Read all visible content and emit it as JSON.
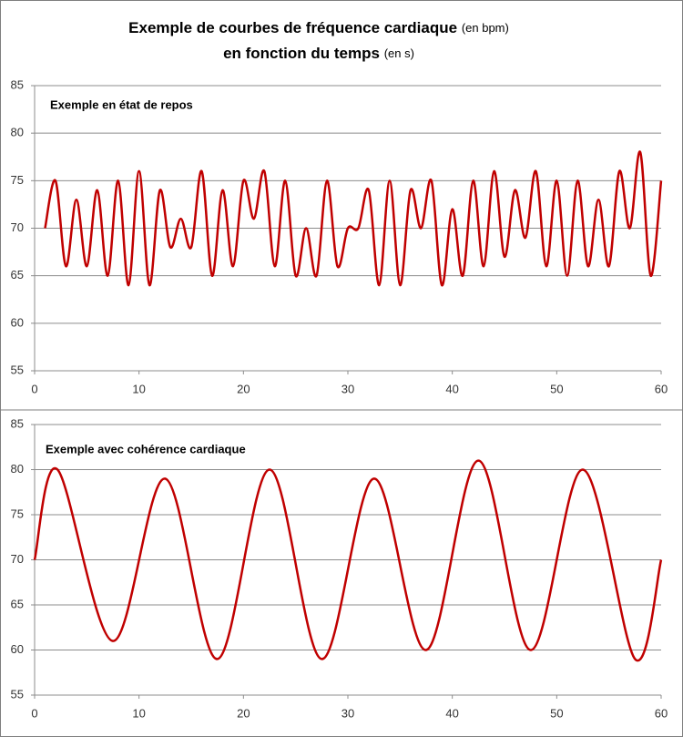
{
  "title": {
    "line1": "Exemple de courbes de fréquence cardiaque",
    "line1_unit": "(en bpm)",
    "line2": "en fonction du temps",
    "line2_unit": "(en s)"
  },
  "chart_data": [
    {
      "type": "line",
      "annotation": "Exemple en état de repos",
      "x": [
        1,
        2,
        3,
        4,
        5,
        6,
        7,
        8,
        9,
        10,
        11,
        12,
        13,
        14,
        15,
        16,
        17,
        18,
        19,
        20,
        21,
        22,
        23,
        24,
        25,
        26,
        27,
        28,
        29,
        30,
        31,
        32,
        33,
        34,
        35,
        36,
        37,
        38,
        39,
        40,
        41,
        42,
        43,
        44,
        45,
        46,
        47,
        48,
        49,
        50,
        51,
        52,
        53,
        54,
        55,
        56,
        57,
        58,
        59,
        60
      ],
      "series": [
        {
          "color": "#c00000",
          "values": [
            70,
            75,
            66,
            73,
            66,
            74,
            65,
            75,
            64,
            76,
            64,
            74,
            68,
            71,
            68,
            76,
            65,
            74,
            66,
            75,
            71,
            76,
            66,
            75,
            65,
            70,
            65,
            75,
            66,
            70,
            70,
            74,
            64,
            75,
            64,
            74,
            70,
            75,
            64,
            72,
            65,
            75,
            66,
            76,
            67,
            74,
            69,
            76,
            66,
            75,
            65,
            75,
            66,
            73,
            66,
            76,
            70,
            78,
            65,
            75
          ]
        }
      ],
      "xlim": [
        0,
        60
      ],
      "xticks": [
        0,
        10,
        20,
        30,
        40,
        50,
        60
      ],
      "ylim": [
        55,
        85
      ],
      "yticks": [
        55,
        60,
        65,
        70,
        75,
        80,
        85
      ],
      "grid": true
    },
    {
      "type": "line",
      "annotation": "Exemple avec cohérence cardiaque",
      "x": [
        0,
        2.2,
        7.5,
        12.5,
        17.5,
        22.5,
        27.5,
        32.5,
        37.5,
        42.5,
        47.5,
        52.5,
        57.5,
        60
      ],
      "series": [
        {
          "color": "#c00000",
          "values": [
            70,
            80,
            61,
            79,
            59,
            80,
            59,
            79,
            60,
            81,
            60,
            80,
            59,
            70
          ]
        }
      ],
      "xlim": [
        0,
        60
      ],
      "xticks": [
        0,
        10,
        20,
        30,
        40,
        50,
        60
      ],
      "ylim": [
        55,
        85
      ],
      "yticks": [
        55,
        60,
        65,
        70,
        75,
        80,
        85
      ],
      "grid": true
    }
  ]
}
